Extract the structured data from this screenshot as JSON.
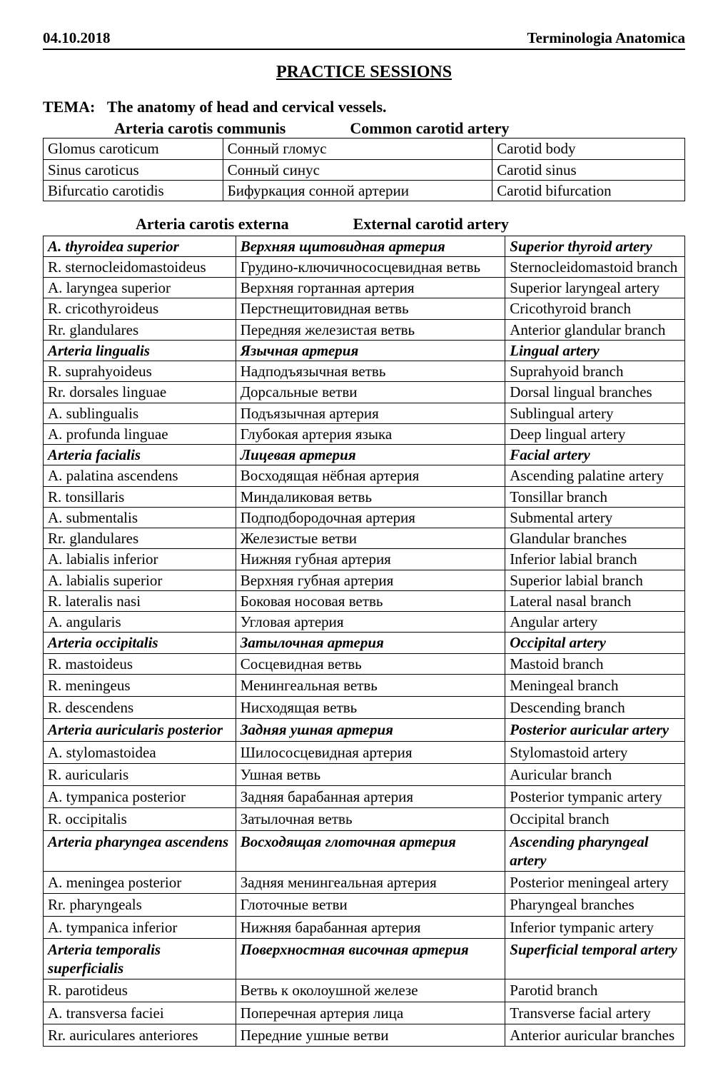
{
  "header": {
    "date": "04.10.2018",
    "title": "Terminologia   Anatomica"
  },
  "practice_heading": "PRACTICE SESSIONS",
  "tema": {
    "prefix": "ТЕМА:",
    "title": "The anatomy of head and cervical vessels.",
    "sub_latin": "Arteria carotis communis",
    "sub_en": "Common carotid artery"
  },
  "table1": {
    "rows": [
      [
        "Glomus caroticum",
        "Сонный гломус",
        "Carotid body"
      ],
      [
        "Sinus caroticus",
        "Сонный синус",
        "Carotid sinus"
      ],
      [
        "Bifurcatio carotidis",
        "Бифуркация сонной артерии",
        "Carotid bifurcation"
      ]
    ]
  },
  "section2": {
    "latin": "Arteria carotis externa",
    "en": "External carotid artery"
  },
  "table2": {
    "rows": [
      {
        "cells": [
          "A. thyroidea superior",
          "Верхняя щитовидная артерия",
          "Superior thyroid artery"
        ],
        "style": "bi"
      },
      {
        "cells": [
          "R. sternocleidomastoideus",
          "Грудино-ключичнососцевидная ветвь",
          "Sternocleidomastoid branch"
        ],
        "style": ""
      },
      {
        "cells": [
          "A. laryngea superior",
          "Верхняя гортанная артерия",
          "Superior laryngeal artery"
        ],
        "style": ""
      },
      {
        "cells": [
          "R. cricothyroideus",
          "Перстнещитовидная ветвь",
          "Cricothyroid branch"
        ],
        "style": ""
      },
      {
        "cells": [
          "Rr. glandulares",
          "Передняя железистая ветвь",
          "Anterior glandular branch"
        ],
        "style": ""
      },
      {
        "cells": [
          "Arteria lingualis",
          "Язычная артерия",
          "Lingual artery"
        ],
        "style": "bi"
      },
      {
        "cells": [
          "R. suprahyoideus",
          "Надподъязычная ветвь",
          "Suprahyoid branch"
        ],
        "style": ""
      },
      {
        "cells": [
          "Rr. dorsales linguae",
          "Дорсальные ветви",
          "Dorsal lingual branches"
        ],
        "style": ""
      },
      {
        "cells": [
          "A. sublingualis",
          "Подъязычная артерия",
          "Sublingual artery"
        ],
        "style": ""
      },
      {
        "cells": [
          "A. profunda linguae",
          "Глубокая артерия языка",
          "Deep lingual artery"
        ],
        "style": ""
      },
      {
        "cells": [
          "Arteria facialis",
          "Лицевая артерия",
          "Facial artery"
        ],
        "style": "bi"
      },
      {
        "cells": [
          "A. palatina ascendens",
          "Восходящая нёбная артерия",
          "Ascending palatine artery"
        ],
        "style": ""
      },
      {
        "cells": [
          "R. tonsillaris",
          "Миндаликовая ветвь",
          "Tonsillar branch"
        ],
        "style": ""
      },
      {
        "cells": [
          "A. submentalis",
          "Подподбородочная артерия",
          "Submental artery"
        ],
        "style": ""
      },
      {
        "cells": [
          "Rr. glandulares",
          "Железистые ветви",
          "Glandular branches"
        ],
        "style": ""
      },
      {
        "cells": [
          "A. labialis inferior",
          "Нижняя губная артерия",
          "Inferior labial branch"
        ],
        "style": ""
      },
      {
        "cells": [
          "A. labialis superior",
          "Верхняя губная артерия",
          "Superior labial branch"
        ],
        "style": ""
      },
      {
        "cells": [
          "R. lateralis nasi",
          "Боковая носовая ветвь",
          "Lateral nasal branch"
        ],
        "style": ""
      },
      {
        "cells": [
          "A. angularis",
          "Угловая артерия",
          "Angular artery"
        ],
        "style": ""
      },
      {
        "cells": [
          "Arteria occipitalis",
          "Затылочная артерия",
          "Occipital artery"
        ],
        "style": "bi"
      },
      {
        "cells": [
          "R. mastoideus",
          "Сосцевидная ветвь",
          "Mastoid branch"
        ],
        "style": ""
      },
      {
        "cells": [
          "R. meningeus",
          "Менингеальная ветвь",
          "Meningeal branch"
        ],
        "style": "",
        "tall": true
      },
      {
        "cells": [
          "R. descendens",
          "Нисходящая ветвь",
          "Descending branch"
        ],
        "style": "",
        "tall": true
      },
      {
        "cells": [
          "Arteria auricularis posterior",
          "Задняя ушная артерия",
          "Posterior auricular artery"
        ],
        "style": "bi",
        "tall": true
      },
      {
        "cells": [
          "A. stylomastoidea",
          "Шилососцевидная артерия",
          "Stylomastoid artery"
        ],
        "style": "",
        "tall": true
      },
      {
        "cells": [
          "R. auricularis",
          "Ушная ветвь",
          "Auricular branch"
        ],
        "style": "",
        "tall": true
      },
      {
        "cells": [
          "A. tympanica posterior",
          "Задняя барабанная артерия",
          "Posterior tympanic artery"
        ],
        "style": "",
        "tall": true
      },
      {
        "cells": [
          "R. occipitalis",
          "Затылочная ветвь",
          "Occipital branch"
        ],
        "style": "",
        "tall": true
      },
      {
        "cells": [
          "Arteria pharyngea ascendens",
          "Восходящая глоточная артерия",
          "Ascending pharyngeal artery"
        ],
        "style": "bi",
        "tall": true
      },
      {
        "cells": [
          "A. meningea posterior",
          "Задняя менингеальная артерия",
          "Posterior meningeal artery"
        ],
        "style": "",
        "tall": true
      },
      {
        "cells": [
          "Rr. pharyngeals",
          "Глоточные ветви",
          "Pharyngeal branches"
        ],
        "style": "",
        "tall": true
      },
      {
        "cells": [
          "A. tympanica inferior",
          "Нижняя барабанная артерия",
          "Inferior tympanic artery"
        ],
        "style": "",
        "tall": true
      },
      {
        "cells": [
          "Arteria temporalis superficialis",
          "Поверхностная височная артерия",
          "Superficial temporal artery"
        ],
        "style": "bi",
        "tall": true
      },
      {
        "cells": [
          "R. parotideus",
          "Ветвь к околоушной железе",
          "Parotid branch"
        ],
        "style": "",
        "tall": true
      },
      {
        "cells": [
          "A. transversa faciei",
          "Поперечная артерия лица",
          "Transverse facial artery"
        ],
        "style": "",
        "tall": true
      },
      {
        "cells": [
          "Rr. auriculares anteriores",
          "Передние ушные ветви",
          "Anterior auricular branches"
        ],
        "style": "",
        "tall": true
      }
    ]
  }
}
